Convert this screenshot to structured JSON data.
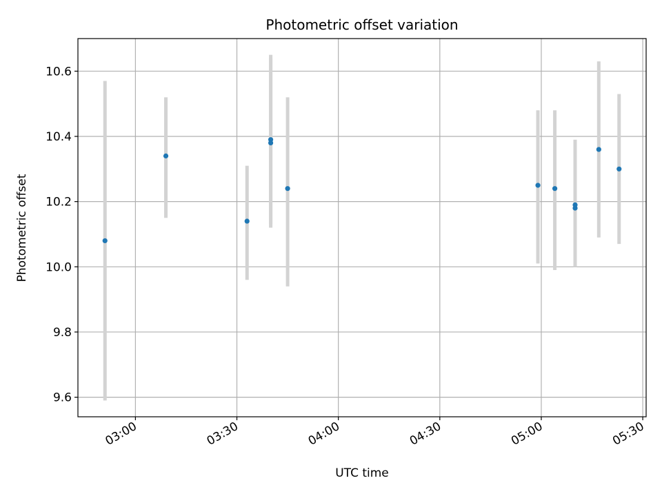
{
  "chart_data": {
    "type": "scatter",
    "title": "Photometric offset variation",
    "xlabel": "UTC time",
    "ylabel": "Photometric offset",
    "x_tick_labels": [
      "03:00",
      "03:30",
      "04:00",
      "04:30",
      "05:00",
      "05:30"
    ],
    "x_tick_values": [
      "03:00",
      "03:30",
      "04:00",
      "04:30",
      "05:00",
      "05:30"
    ],
    "xlim": [
      "02:43",
      "05:31"
    ],
    "y_tick_labels": [
      "9.6",
      "9.8",
      "10.0",
      "10.2",
      "10.4",
      "10.6"
    ],
    "y_tick_values": [
      9.6,
      9.8,
      10.0,
      10.2,
      10.4,
      10.6
    ],
    "ylim": [
      9.54,
      10.7
    ],
    "grid": true,
    "series": [
      {
        "marker_color": "#1f77b4",
        "errorbar_color": "#d3d3d3",
        "points": [
          {
            "x": "02:51",
            "y": 10.08,
            "low": 9.59,
            "high": 10.57
          },
          {
            "x": "03:09",
            "y": 10.34,
            "low": 10.15,
            "high": 10.52
          },
          {
            "x": "03:33",
            "y": 10.14,
            "low": 9.96,
            "high": 10.31
          },
          {
            "x": "03:40",
            "y": 10.39,
            "low": 10.13,
            "high": 10.65
          },
          {
            "x": "03:40",
            "y": 10.38,
            "low": 10.12,
            "high": 10.64
          },
          {
            "x": "03:45",
            "y": 10.24,
            "low": 9.94,
            "high": 10.52
          },
          {
            "x": "04:59",
            "y": 10.25,
            "low": 10.01,
            "high": 10.48
          },
          {
            "x": "05:04",
            "y": 10.24,
            "low": 9.99,
            "high": 10.48
          },
          {
            "x": "05:10",
            "y": 10.19,
            "low": 10.0,
            "high": 10.39
          },
          {
            "x": "05:10",
            "y": 10.18,
            "low": 10.0,
            "high": 10.37
          },
          {
            "x": "05:17",
            "y": 10.36,
            "low": 10.09,
            "high": 10.63
          },
          {
            "x": "05:23",
            "y": 10.3,
            "low": 10.07,
            "high": 10.53
          }
        ]
      }
    ]
  }
}
